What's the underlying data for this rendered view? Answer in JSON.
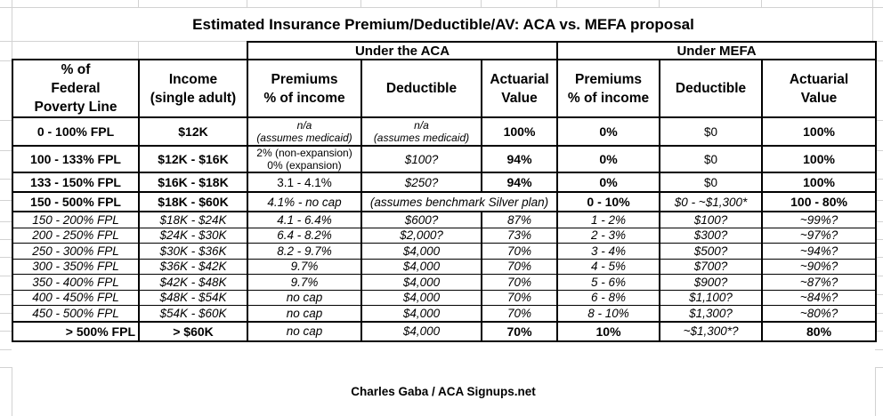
{
  "title": "Estimated Insurance Premium/Deductible/AV: ACA vs. MEFA proposal",
  "footer": "Charles Gaba / ACA Signups.net",
  "chart_data": {
    "type": "table",
    "title": "Estimated Insurance Premium/Deductible/AV: ACA vs. MEFA proposal",
    "group_headers": [
      "Under the ACA",
      "Under MEFA"
    ],
    "columns": [
      "% of\nFederal\nPoverty Line",
      "Income\n(single adult)",
      "Premiums\n% of income",
      "Deductible",
      "Actuarial\nValue",
      "Premiums\n% of income",
      "Deductible",
      "Actuarial\nValue"
    ],
    "rows": [
      {
        "fpl": "0 - 100% FPL",
        "income": "$12K",
        "aca_premium": "n/a\n(assumes medicaid)",
        "aca_deductible": "n/a\n(assumes medicaid)",
        "aca_av": "100%",
        "mefa_premium": "0%",
        "mefa_deductible": "$0",
        "mefa_av": "100%"
      },
      {
        "fpl": "100 - 133% FPL",
        "income": "$12K - $16K",
        "aca_premium": "2% (non-expansion)\n0% (expansion)",
        "aca_deductible": "$100?",
        "aca_av": "94%",
        "mefa_premium": "0%",
        "mefa_deductible": "$0",
        "mefa_av": "100%"
      },
      {
        "fpl": "133 - 150% FPL",
        "income": "$16K - $18K",
        "aca_premium": "3.1 - 4.1%",
        "aca_deductible": "$250?",
        "aca_av": "94%",
        "mefa_premium": "0%",
        "mefa_deductible": "$0",
        "mefa_av": "100%"
      },
      {
        "fpl": "150 - 500% FPL",
        "income": "$18K - $60K",
        "aca_premium": "4.1% - no cap",
        "aca_note": "(assumes benchmark Silver plan)",
        "mefa_premium": "0 - 10%",
        "mefa_deductible": "$0 - ~$1,300*",
        "mefa_av": "100 - 80%"
      },
      {
        "fpl": "150 - 200% FPL",
        "income": "$18K - $24K",
        "aca_premium": "4.1 - 6.4%",
        "aca_deductible": "$600?",
        "aca_av": "87%",
        "mefa_premium": "1 - 2%",
        "mefa_deductible": "$100?",
        "mefa_av": "~99%?"
      },
      {
        "fpl": "200 - 250% FPL",
        "income": "$24K - $30K",
        "aca_premium": "6.4 - 8.2%",
        "aca_deductible": "$2,000?",
        "aca_av": "73%",
        "mefa_premium": "2 - 3%",
        "mefa_deductible": "$300?",
        "mefa_av": "~97%?"
      },
      {
        "fpl": "250 - 300% FPL",
        "income": "$30K - $36K",
        "aca_premium": "8.2 - 9.7%",
        "aca_deductible": "$4,000",
        "aca_av": "70%",
        "mefa_premium": "3 - 4%",
        "mefa_deductible": "$500?",
        "mefa_av": "~94%?"
      },
      {
        "fpl": "300 - 350% FPL",
        "income": "$36K - $42K",
        "aca_premium": "9.7%",
        "aca_deductible": "$4,000",
        "aca_av": "70%",
        "mefa_premium": "4 - 5%",
        "mefa_deductible": "$700?",
        "mefa_av": "~90%?"
      },
      {
        "fpl": "350 - 400% FPL",
        "income": "$42K - $48K",
        "aca_premium": "9.7%",
        "aca_deductible": "$4,000",
        "aca_av": "70%",
        "mefa_premium": "5 - 6%",
        "mefa_deductible": "$900?",
        "mefa_av": "~87%?"
      },
      {
        "fpl": "400 - 450% FPL",
        "income": "$48K - $54K",
        "aca_premium": "no cap",
        "aca_deductible": "$4,000",
        "aca_av": "70%",
        "mefa_premium": "6 - 8%",
        "mefa_deductible": "$1,100?",
        "mefa_av": "~84%?"
      },
      {
        "fpl": "450 - 500% FPL",
        "income": "$54K - $60K",
        "aca_premium": "no cap",
        "aca_deductible": "$4,000",
        "aca_av": "70%",
        "mefa_premium": "8 - 10%",
        "mefa_deductible": "$1,300?",
        "mefa_av": "~80%?"
      },
      {
        "fpl": "> 500% FPL",
        "income": "> $60K",
        "aca_premium": "no cap",
        "aca_deductible": "$4,000",
        "aca_av": "70%",
        "mefa_premium": "10%",
        "mefa_deductible": "~$1,300*?",
        "mefa_av": "80%"
      }
    ]
  },
  "colors": {
    "text": "#000000",
    "table_border": "#000000",
    "gridline": "#d2d2d2",
    "background": "#ffffff"
  }
}
